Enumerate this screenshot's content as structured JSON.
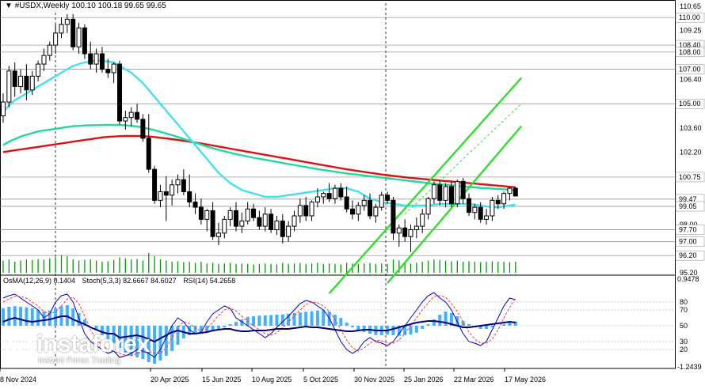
{
  "header": {
    "symbol": "#USDX,Weekly",
    "ohlc": "100.10 100.18 99.65 99.65"
  },
  "indicator_header": {
    "osma": "OsMA(12,26,9) 0.1404",
    "stoch": "Stoch(5,3,3) 82.6667 84.6027",
    "rsi": "RSI(14) 54.2658"
  },
  "logo": {
    "name": "instaforex",
    "tagline": "Instant Forex Trading"
  },
  "colors": {
    "ma_fast": "#40e0f0",
    "ma_mid": "#20d8a0",
    "ma_slow": "#e01010",
    "channel": "#30dd30",
    "candle": "#000000",
    "volume": "#009900",
    "osma": "#40b0ff",
    "stoch_main": "#0000cc",
    "stoch_signal": "#ff3333",
    "rsi": "#000080",
    "price_label_bg": "#ffffff"
  },
  "chart_data": {
    "type": "candlestick",
    "timeframe": "Weekly",
    "ylim": [
      95.2,
      110.65
    ],
    "x_labels": [
      "8 Nov 2024",
      "20 Apr 2025",
      "15 Jun 2025",
      "10 Aug 2025",
      "5 Oct 2025",
      "30 Nov 2025",
      "25 Jan 2026",
      "22 Mar 2026",
      "17 May 2026"
    ],
    "y_ticks": [
      "110.65",
      "109.25",
      "107.85",
      "106.40",
      "105.00",
      "103.60",
      "102.20",
      "100.75",
      "99.47",
      "99.05",
      "98.00",
      "97.00",
      "96.20",
      "95.20"
    ],
    "level_labels": [
      "110.00",
      "108.40",
      "108.00",
      "107.00",
      "105.00",
      "100.75",
      "99.47",
      "99.05",
      "97.70",
      "97.00",
      "96.20"
    ],
    "current_price": "99.65",
    "osma_axis": [
      "0.9478",
      "80",
      "70",
      "50",
      "30",
      "20",
      "-1.2439"
    ],
    "candles_ohlc": [
      [
        104.3,
        105.6,
        103.9,
        105.1
      ],
      [
        105.1,
        107.2,
        104.8,
        106.9
      ],
      [
        106.9,
        107.4,
        105.4,
        106.0
      ],
      [
        106.0,
        107.0,
        105.6,
        106.6
      ],
      [
        106.6,
        107.3,
        105.2,
        105.8
      ],
      [
        105.8,
        106.9,
        105.5,
        106.6
      ],
      [
        106.6,
        107.5,
        106.3,
        107.3
      ],
      [
        107.3,
        108.2,
        106.9,
        107.8
      ],
      [
        107.8,
        108.6,
        107.5,
        108.4
      ],
      [
        108.4,
        109.6,
        107.9,
        109.1
      ],
      [
        109.1,
        110.0,
        108.8,
        109.6
      ],
      [
        109.6,
        110.2,
        109.1,
        109.9
      ],
      [
        109.9,
        110.2,
        108.1,
        108.3
      ],
      [
        108.3,
        109.7,
        107.9,
        109.4
      ],
      [
        109.4,
        109.6,
        107.6,
        107.9
      ],
      [
        107.9,
        108.6,
        107.0,
        107.3
      ],
      [
        107.3,
        108.2,
        106.8,
        107.9
      ],
      [
        107.9,
        108.3,
        106.8,
        107.0
      ],
      [
        107.0,
        107.6,
        106.5,
        106.8
      ],
      [
        106.8,
        107.4,
        106.2,
        107.3
      ],
      [
        107.3,
        107.5,
        103.8,
        104.0
      ],
      [
        104.0,
        104.6,
        103.5,
        104.2
      ],
      [
        104.2,
        104.8,
        103.7,
        104.5
      ],
      [
        104.5,
        105.0,
        103.9,
        104.1
      ],
      [
        104.1,
        104.4,
        102.8,
        103.0
      ],
      [
        103.0,
        104.4,
        101.0,
        101.2
      ],
      [
        101.2,
        101.4,
        99.2,
        99.4
      ],
      [
        99.4,
        100.3,
        99.0,
        99.9
      ],
      [
        99.9,
        100.8,
        98.2,
        99.7
      ],
      [
        99.7,
        100.6,
        99.1,
        100.3
      ],
      [
        100.3,
        100.9,
        99.8,
        100.6
      ],
      [
        100.6,
        101.2,
        99.7,
        99.9
      ],
      [
        99.9,
        100.9,
        99.0,
        99.3
      ],
      [
        99.3,
        99.8,
        98.6,
        99.0
      ],
      [
        99.0,
        99.5,
        98.0,
        98.3
      ],
      [
        98.3,
        98.9,
        97.6,
        98.8
      ],
      [
        98.8,
        99.3,
        97.1,
        97.3
      ],
      [
        97.3,
        98.1,
        96.8,
        97.5
      ],
      [
        97.5,
        98.5,
        97.2,
        98.3
      ],
      [
        98.3,
        99.0,
        97.9,
        98.8
      ],
      [
        98.8,
        99.3,
        97.6,
        97.9
      ],
      [
        97.9,
        98.7,
        97.5,
        98.2
      ],
      [
        98.2,
        99.3,
        98.0,
        98.9
      ],
      [
        98.9,
        99.2,
        98.2,
        98.4
      ],
      [
        98.4,
        98.8,
        97.7,
        97.9
      ],
      [
        97.9,
        99.0,
        97.6,
        98.6
      ],
      [
        98.6,
        98.9,
        97.5,
        97.7
      ],
      [
        97.7,
        98.5,
        97.4,
        98.2
      ],
      [
        98.2,
        98.6,
        96.9,
        97.3
      ],
      [
        97.3,
        98.2,
        97.0,
        97.9
      ],
      [
        97.9,
        98.8,
        97.6,
        98.5
      ],
      [
        98.5,
        99.5,
        98.1,
        99.1
      ],
      [
        99.1,
        99.6,
        98.2,
        98.5
      ],
      [
        98.5,
        99.4,
        98.2,
        99.3
      ],
      [
        99.3,
        100.1,
        99.0,
        99.6
      ],
      [
        99.6,
        99.9,
        99.2,
        99.8
      ],
      [
        99.8,
        100.4,
        99.3,
        99.5
      ],
      [
        99.5,
        100.3,
        99.2,
        100.1
      ],
      [
        100.1,
        100.4,
        99.4,
        99.6
      ],
      [
        99.6,
        100.2,
        98.7,
        98.9
      ],
      [
        98.9,
        99.4,
        98.3,
        98.6
      ],
      [
        98.6,
        99.3,
        98.2,
        99.1
      ],
      [
        99.1,
        99.7,
        98.8,
        99.4
      ],
      [
        99.4,
        99.8,
        98.3,
        98.5
      ],
      [
        98.5,
        99.2,
        98.1,
        99.0
      ],
      [
        99.0,
        99.9,
        98.8,
        99.7
      ],
      [
        99.7,
        99.9,
        99.2,
        99.4
      ],
      [
        99.4,
        99.6,
        97.1,
        97.5
      ],
      [
        97.5,
        98.0,
        96.7,
        97.8
      ],
      [
        97.8,
        98.3,
        97.0,
        97.3
      ],
      [
        97.3,
        98.0,
        96.4,
        97.7
      ],
      [
        97.7,
        98.4,
        97.2,
        97.9
      ],
      [
        97.9,
        98.9,
        97.5,
        98.6
      ],
      [
        98.6,
        99.6,
        98.3,
        99.5
      ],
      [
        99.5,
        100.5,
        99.2,
        100.3
      ],
      [
        100.3,
        100.6,
        99.1,
        99.4
      ],
      [
        99.4,
        100.4,
        99.0,
        100.2
      ],
      [
        100.2,
        100.5,
        99.0,
        99.2
      ],
      [
        99.2,
        100.6,
        99.0,
        100.5
      ],
      [
        100.5,
        100.7,
        99.2,
        99.5
      ],
      [
        99.5,
        99.8,
        98.5,
        98.7
      ],
      [
        98.7,
        99.2,
        98.3,
        99.0
      ],
      [
        99.0,
        99.3,
        98.1,
        98.3
      ],
      [
        98.3,
        98.9,
        98.0,
        98.5
      ],
      [
        98.5,
        99.6,
        98.2,
        99.4
      ],
      [
        99.4,
        99.7,
        98.9,
        99.2
      ],
      [
        99.2,
        99.9,
        98.9,
        99.8
      ],
      [
        99.8,
        100.2,
        99.4,
        100.1
      ],
      [
        100.1,
        100.18,
        99.65,
        99.65
      ]
    ],
    "ma_fast": [
      104.5,
      104.9,
      105.2,
      105.4,
      105.6,
      105.8,
      106.0,
      106.2,
      106.4,
      106.6,
      106.8,
      107.0,
      107.2,
      107.3,
      107.4,
      107.45,
      107.5,
      107.5,
      107.45,
      107.4,
      107.2,
      107.0,
      106.8,
      106.5,
      106.2,
      105.8,
      105.4,
      105.0,
      104.6,
      104.2,
      103.8,
      103.4,
      103.0,
      102.6,
      102.2,
      101.8,
      101.4,
      101.0,
      100.7,
      100.4,
      100.2,
      100.0,
      99.9,
      99.8,
      99.7,
      99.6,
      99.6,
      99.6,
      99.65,
      99.7,
      99.75,
      99.8,
      99.85,
      99.9,
      99.95,
      100.0,
      100.05,
      100.1,
      100.1,
      100.1,
      100.0,
      99.9,
      99.7,
      99.5,
      99.4,
      99.3,
      99.25,
      99.2,
      99.15,
      99.1,
      99.1,
      99.1,
      99.1,
      99.1,
      99.15,
      99.2,
      99.2,
      99.2,
      99.2,
      99.2,
      99.2,
      99.15,
      99.1,
      99.05,
      99.0,
      99.0,
      99.05,
      99.1,
      99.15
    ],
    "ma_mid": [
      102.6,
      102.8,
      102.95,
      103.1,
      103.2,
      103.3,
      103.4,
      103.45,
      103.5,
      103.55,
      103.6,
      103.65,
      103.7,
      103.72,
      103.74,
      103.75,
      103.76,
      103.77,
      103.78,
      103.78,
      103.77,
      103.75,
      103.72,
      103.68,
      103.62,
      103.55,
      103.47,
      103.38,
      103.28,
      103.18,
      103.07,
      102.96,
      102.85,
      102.74,
      102.63,
      102.52,
      102.42,
      102.33,
      102.24,
      102.16,
      102.08,
      102.01,
      101.94,
      101.87,
      101.81,
      101.75,
      101.69,
      101.63,
      101.57,
      101.51,
      101.45,
      101.39,
      101.33,
      101.27,
      101.21,
      101.16,
      101.11,
      101.06,
      101.01,
      100.96,
      100.92,
      100.88,
      100.84,
      100.8,
      100.76,
      100.72,
      100.68,
      100.64,
      100.6,
      100.56,
      100.52,
      100.48,
      100.44,
      100.4,
      100.36,
      100.33,
      100.3,
      100.27,
      100.24,
      100.21,
      100.18,
      100.15,
      100.12,
      100.1,
      100.08,
      100.06,
      100.04,
      100.02,
      100.0
    ],
    "ma_slow": [
      102.2,
      102.25,
      102.3,
      102.35,
      102.4,
      102.45,
      102.5,
      102.55,
      102.6,
      102.65,
      102.7,
      102.75,
      102.8,
      102.85,
      102.9,
      102.95,
      103.0,
      103.05,
      103.08,
      103.1,
      103.12,
      103.13,
      103.13,
      103.13,
      103.12,
      103.1,
      103.07,
      103.03,
      102.99,
      102.95,
      102.9,
      102.85,
      102.8,
      102.75,
      102.7,
      102.64,
      102.58,
      102.52,
      102.46,
      102.4,
      102.34,
      102.28,
      102.22,
      102.16,
      102.1,
      102.04,
      101.98,
      101.92,
      101.86,
      101.8,
      101.74,
      101.68,
      101.62,
      101.56,
      101.5,
      101.44,
      101.38,
      101.32,
      101.26,
      101.2,
      101.15,
      101.1,
      101.05,
      101.0,
      100.95,
      100.9,
      100.86,
      100.82,
      100.78,
      100.74,
      100.7,
      100.67,
      100.64,
      100.61,
      100.58,
      100.55,
      100.52,
      100.49,
      100.46,
      100.43,
      100.4,
      100.37,
      100.34,
      100.31,
      100.28,
      100.25,
      100.22,
      100.19,
      100.16
    ],
    "channel_lines": {
      "upper": [
        [
          56,
          94.0
        ],
        [
          89,
          106.5
        ]
      ],
      "lower": [
        [
          66,
          94.6
        ],
        [
          89,
          103.7
        ]
      ],
      "mid_dashed": [
        [
          69,
          98.6
        ],
        [
          89,
          105.0
        ]
      ]
    },
    "volume": [
      0.55,
      0.6,
      0.5,
      0.55,
      0.6,
      0.58,
      0.62,
      0.6,
      0.65,
      0.7,
      0.8,
      0.75,
      0.6,
      0.55,
      0.58,
      0.6,
      0.55,
      0.5,
      0.52,
      0.58,
      0.7,
      0.65,
      0.6,
      0.62,
      0.55,
      0.9,
      0.75,
      0.6,
      0.55,
      0.5,
      0.52,
      0.48,
      0.5,
      0.45,
      0.5,
      0.42,
      0.45,
      0.4,
      0.42,
      0.45,
      0.4,
      0.42,
      0.4,
      0.38,
      0.4,
      0.42,
      0.4,
      0.38,
      0.45,
      0.4,
      0.42,
      0.44,
      0.4,
      0.42,
      0.45,
      0.4,
      0.42,
      0.4,
      0.38,
      0.45,
      0.42,
      0.4,
      0.42,
      0.44,
      0.4,
      0.42,
      0.4,
      0.6,
      0.55,
      0.45,
      0.42,
      0.45,
      0.5,
      0.55,
      0.6,
      0.58,
      0.55,
      0.52,
      0.55,
      0.5,
      0.52,
      0.5,
      0.48,
      0.5,
      0.52,
      0.5,
      0.5,
      0.48,
      0.5
    ],
    "osma_hist": [
      0.55,
      0.6,
      0.62,
      0.6,
      0.58,
      0.55,
      0.5,
      0.45,
      0.48,
      0.55,
      0.62,
      0.65,
      0.55,
      0.4,
      0.2,
      0.0,
      -0.15,
      -0.3,
      -0.45,
      -0.55,
      -0.7,
      -0.85,
      -0.95,
      -1.0,
      -1.05,
      -1.15,
      -1.2,
      -1.1,
      -0.95,
      -0.8,
      -0.6,
      -0.4,
      -0.3,
      -0.25,
      -0.22,
      -0.2,
      -0.18,
      -0.12,
      -0.05,
      0.05,
      0.12,
      0.2,
      0.28,
      0.3,
      0.32,
      0.33,
      0.34,
      0.35,
      0.36,
      0.38,
      0.4,
      0.42,
      0.44,
      0.46,
      0.48,
      0.5,
      0.45,
      0.35,
      0.25,
      0.1,
      -0.05,
      -0.15,
      -0.2,
      -0.25,
      -0.3,
      -0.3,
      -0.28,
      -0.3,
      -0.32,
      -0.3,
      -0.28,
      -0.22,
      -0.1,
      0.05,
      0.2,
      0.35,
      0.45,
      0.4,
      0.3,
      0.15,
      0.05,
      -0.05,
      -0.1,
      -0.1,
      -0.05,
      0.0,
      0.05,
      0.1,
      0.14
    ],
    "stoch_main": [
      85,
      88,
      90,
      85,
      80,
      75,
      70,
      60,
      65,
      80,
      88,
      90,
      80,
      60,
      40,
      30,
      25,
      20,
      15,
      18,
      10,
      12,
      15,
      20,
      18,
      15,
      10,
      20,
      35,
      50,
      60,
      55,
      45,
      40,
      42,
      55,
      65,
      70,
      75,
      72,
      60,
      55,
      50,
      45,
      40,
      35,
      40,
      48,
      55,
      62,
      70,
      78,
      82,
      80,
      75,
      70,
      60,
      45,
      30,
      20,
      15,
      20,
      30,
      35,
      30,
      28,
      25,
      30,
      40,
      50,
      60,
      70,
      80,
      88,
      92,
      85,
      80,
      70,
      55,
      40,
      30,
      28,
      25,
      30,
      45,
      60,
      75,
      85,
      83
    ],
    "stoch_signal": [
      80,
      84,
      87,
      87,
      85,
      80,
      75,
      68,
      65,
      68,
      75,
      84,
      86,
      78,
      62,
      45,
      33,
      25,
      20,
      18,
      15,
      13,
      12,
      15,
      17,
      18,
      15,
      15,
      22,
      35,
      48,
      55,
      53,
      47,
      43,
      46,
      54,
      63,
      70,
      72,
      69,
      62,
      55,
      50,
      45,
      40,
      38,
      41,
      48,
      55,
      62,
      70,
      77,
      80,
      79,
      75,
      68,
      58,
      45,
      32,
      22,
      18,
      22,
      28,
      32,
      31,
      28,
      28,
      32,
      40,
      50,
      60,
      70,
      79,
      87,
      88,
      86,
      78,
      68,
      55,
      42,
      33,
      28,
      28,
      33,
      45,
      60,
      73,
      85
    ],
    "rsi": [
      55,
      58,
      60,
      58,
      56,
      55,
      56,
      57,
      58,
      60,
      62,
      62,
      58,
      55,
      52,
      48,
      45,
      42,
      40,
      40,
      35,
      36,
      37,
      38,
      36,
      33,
      30,
      34,
      38,
      42,
      44,
      42,
      40,
      40,
      41,
      42,
      44,
      45,
      46,
      46,
      44,
      43,
      43,
      44,
      44,
      44,
      45,
      46,
      46,
      46,
      47,
      48,
      49,
      48,
      48,
      47,
      46,
      45,
      44,
      43,
      43,
      44,
      45,
      45,
      44,
      44,
      44,
      46,
      48,
      50,
      52,
      54,
      55,
      56,
      56,
      55,
      54,
      52,
      50,
      48,
      48,
      49,
      50,
      51,
      52,
      53,
      54,
      55,
      54
    ]
  }
}
